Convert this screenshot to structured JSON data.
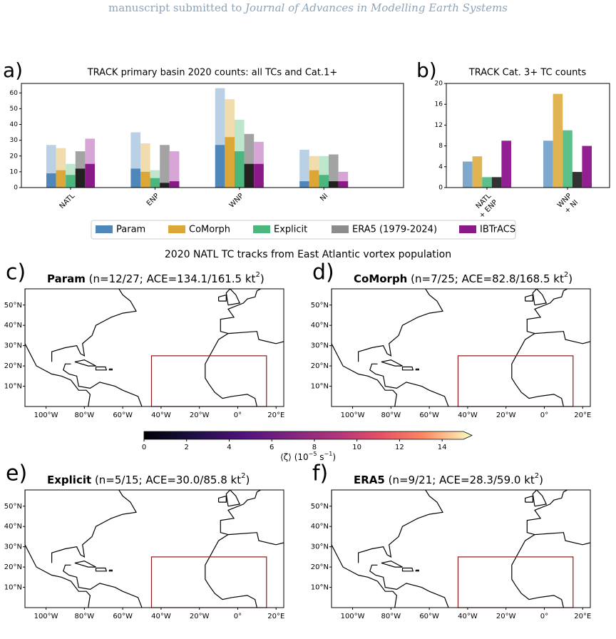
{
  "header": {
    "prefix": "manuscript submitted to",
    "journal": "Journal of Advances in Modelling Earth Systems"
  },
  "chart_data": [
    {
      "type": "bar",
      "panel": "a)",
      "title": "TRACK primary basin 2020 counts: all TCs and Cat.1+",
      "categories": [
        "NATL",
        "ENP",
        "WNP",
        "NI"
      ],
      "ylim": [
        0,
        66
      ],
      "yticks": [
        0,
        10,
        20,
        30,
        40,
        50,
        60
      ],
      "series": [
        {
          "name": "Param",
          "color": "#4f87ba",
          "light_color": "#b9d0e5",
          "cat1_color": "#4f87ba",
          "values": [
            27,
            35,
            63,
            24
          ],
          "cat1_values": [
            9,
            12,
            27,
            4
          ]
        },
        {
          "name": "CoMorph",
          "color": "#dca737",
          "light_color": "#f1dcad",
          "cat1_color": "#dca737",
          "values": [
            25,
            28,
            56,
            20
          ],
          "cat1_values": [
            11,
            10,
            32,
            11
          ]
        },
        {
          "name": "Explicit",
          "color": "#4bb77d",
          "light_color": "#bde6cc",
          "cat1_color": "#4bb77d",
          "values": [
            15,
            11,
            43,
            20
          ],
          "cat1_values": [
            8,
            6,
            23,
            8
          ]
        },
        {
          "name": "ERA5 (1979-2024)",
          "color": "#8c8c8c",
          "light_color": "#a3a3a3",
          "cat1_color": "#222222",
          "values": [
            23,
            27,
            34,
            21
          ],
          "cat1_values": [
            12,
            3,
            15,
            4
          ]
        },
        {
          "name": "IBTrACS",
          "color": "#8b1a89",
          "light_color": "#d6a5d5",
          "cat1_color": "#8b1a89",
          "values": [
            31,
            23,
            29,
            10
          ],
          "cat1_values": [
            15,
            4,
            15,
            4
          ]
        }
      ]
    },
    {
      "type": "bar",
      "panel": "b)",
      "title": "TRACK Cat. 3+ TC counts",
      "categories": [
        [
          "NATL",
          "+ ENP"
        ],
        [
          "WNP",
          "+ NI"
        ]
      ],
      "ylim": [
        0,
        20
      ],
      "yticks": [
        0,
        4,
        8,
        12,
        16,
        20
      ],
      "series": [
        {
          "color": "#7fa8cf",
          "values": [
            5,
            9
          ]
        },
        {
          "color": "#e0b452",
          "values": [
            6,
            18
          ]
        },
        {
          "color": "#5cc08a",
          "values": [
            2,
            11
          ]
        },
        {
          "color": "#333333",
          "values": [
            2,
            3
          ]
        },
        {
          "color": "#932092",
          "values": [
            9,
            8
          ]
        }
      ]
    }
  ],
  "maps": {
    "title": "2020 NATL TC tracks from East Atlantic vortex population",
    "xlim": [
      -111,
      24
    ],
    "ylim": [
      0,
      58
    ],
    "xticks": [
      {
        "value": -100,
        "label": "100°W"
      },
      {
        "value": -80,
        "label": "80°W"
      },
      {
        "value": -60,
        "label": "60°W"
      },
      {
        "value": -40,
        "label": "40°W"
      },
      {
        "value": -20,
        "label": "20°W"
      },
      {
        "value": 0,
        "label": "0°"
      },
      {
        "value": 20,
        "label": "20°E"
      }
    ],
    "yticks": [
      {
        "value": 10,
        "label": "10°N"
      },
      {
        "value": 20,
        "label": "20°N"
      },
      {
        "value": 30,
        "label": "30°N"
      },
      {
        "value": 40,
        "label": "40°N"
      },
      {
        "value": 50,
        "label": "50°N"
      }
    ],
    "box": {
      "lon": [
        -45,
        15
      ],
      "lat": [
        0,
        25
      ],
      "color": "#8b1a1a"
    },
    "panels": [
      {
        "label": "c)",
        "name": "Param",
        "stats": "(n=12/27; ACE=134.1/161.5 kt",
        "sup": "2",
        "close": ")"
      },
      {
        "label": "d)",
        "name": "CoMorph",
        "stats": "(n=7/25; ACE=82.8/168.5 kt",
        "sup": "2",
        "close": ")"
      },
      {
        "label": "e)",
        "name": "Explicit",
        "stats": "(n=5/15; ACE=30.0/85.8 kt",
        "sup": "2",
        "close": ")"
      },
      {
        "label": "f)",
        "name": "ERA5",
        "stats": "(n=9/21; ACE=28.3/59.0 kt",
        "sup": "2",
        "close": ")"
      }
    ],
    "colorbar": {
      "lim": [
        0,
        15
      ],
      "ticks": [
        0,
        2,
        4,
        6,
        8,
        10,
        12,
        14
      ],
      "label": "⟨ζ⟩ (10",
      "exp1": "−5",
      "unit": " s",
      "exp2": "−1",
      "close": ")"
    }
  }
}
